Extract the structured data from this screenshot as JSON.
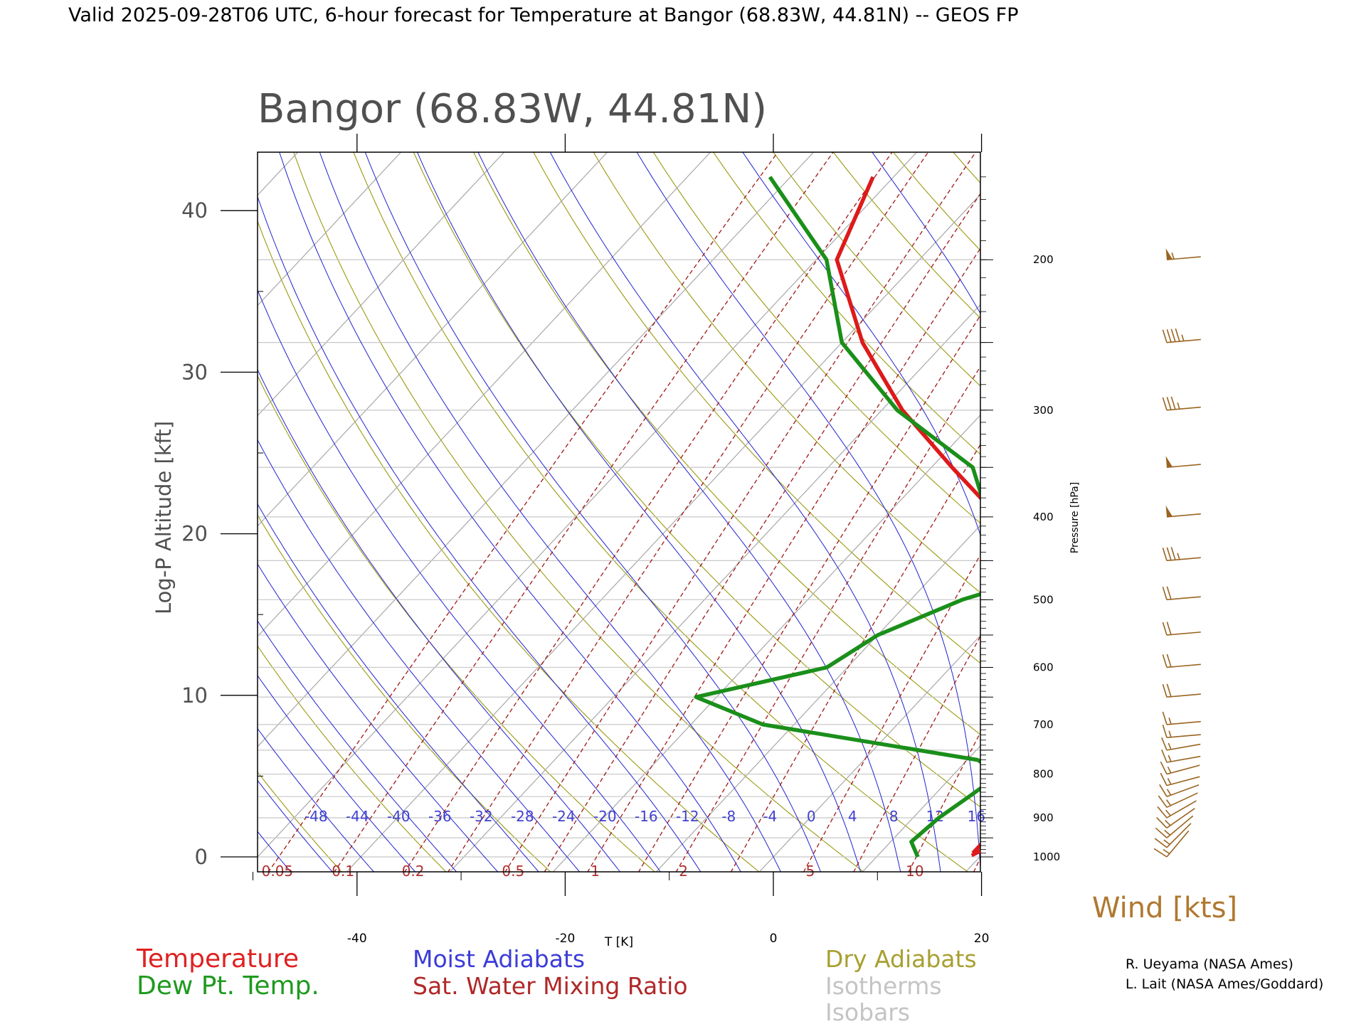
{
  "header": {
    "title": "Valid 2025-09-28T06 UTC, 6-hour forecast for Temperature at Bangor (68.83W, 44.81N) -- GEOS FP"
  },
  "plot": {
    "title": "Bangor (68.83W, 44.81N)",
    "left_axis_label": "Log-P Altitude [kft]",
    "right_axis_label": "Pressure [hPa]",
    "x_axis_label": "T [K]",
    "wind_label": "Wind [kts]"
  },
  "legend": {
    "left": [
      {
        "label": "Temperature",
        "color": "#e02020"
      },
      {
        "label": "Dew Pt. Temp.",
        "color": "#1e9a1e"
      }
    ],
    "middle": [
      {
        "label": "Moist Adiabats",
        "color": "#3c3cd8"
      },
      {
        "label": "Sat. Water Mixing Ratio",
        "color": "#b02828"
      }
    ],
    "right": [
      {
        "label": "Dry Adiabats",
        "color": "#a8a030"
      },
      {
        "label": "Isotherms",
        "color": "#c4c4c4"
      },
      {
        "label": "Isobars",
        "color": "#c4c4c4"
      }
    ]
  },
  "credits": [
    "R. Ueyama (NASA Ames)",
    "L. Lait (NASA Ames/Goddard)"
  ],
  "colors": {
    "temperature": "#dd1a1a",
    "dewpoint": "#1a8f1a",
    "moist_adiabat": "#2222d0",
    "dry_adiabat": "#9a9a10",
    "mixing_ratio": "#a01818",
    "isotherm": "#a8a8a8",
    "isobar": "#c8c8c8",
    "wind": "#9a6420"
  },
  "chart_data": {
    "type": "line",
    "x_axis": {
      "label": "T [K]",
      "range": [
        -50,
        20
      ],
      "ticks": [
        -40,
        -20,
        0,
        20
      ]
    },
    "y_axis_left": {
      "label": "Log-P Altitude [kft]",
      "range": [
        -1,
        43
      ],
      "ticks": [
        0,
        10,
        20,
        30,
        40
      ]
    },
    "y_axis_right": {
      "label": "Pressure [hPa]",
      "labeled_ticks": [
        200,
        300,
        400,
        500,
        600,
        700,
        800,
        900,
        1000
      ]
    },
    "skew_temperature_labels": [
      "-48",
      "-44",
      "-40",
      "-36",
      "-32",
      "-28",
      "-24",
      "-20",
      "-16",
      "-12",
      "-8",
      "-4",
      "0",
      "4",
      "8",
      "12",
      "16"
    ],
    "mixing_ratio_labels": [
      "0.05",
      "0.1",
      "0.2",
      "0.5",
      "1",
      "2",
      "5",
      "10"
    ],
    "series": [
      {
        "name": "Temperature",
        "color": "#dd1a1a",
        "points": [
          {
            "p": 990,
            "t": 19.0
          },
          {
            "p": 900,
            "t": 19.0
          },
          {
            "p": 850,
            "t": 17.0
          },
          {
            "p": 800,
            "t": 15.0
          },
          {
            "p": 760,
            "t": 14.5
          },
          {
            "p": 720,
            "t": 15.5
          },
          {
            "p": 650,
            "t": 18.5
          },
          {
            "p": 600,
            "t": 15.0
          },
          {
            "p": 500,
            "t": 2.0
          },
          {
            "p": 450,
            "t": -2.0
          },
          {
            "p": 400,
            "t": -9.0
          },
          {
            "p": 350,
            "t": -18.0
          },
          {
            "p": 300,
            "t": -28.0
          },
          {
            "p": 250,
            "t": -38.0
          },
          {
            "p": 200,
            "t": -48.0
          },
          {
            "p": 160,
            "t": -52.0
          }
        ]
      },
      {
        "name": "Dew Pt. Temp.",
        "color": "#1a8f1a",
        "points": [
          {
            "p": 1000,
            "t": 14.0
          },
          {
            "p": 960,
            "t": 12.0
          },
          {
            "p": 900,
            "t": 12.5
          },
          {
            "p": 850,
            "t": 13.5
          },
          {
            "p": 800,
            "t": 14.5
          },
          {
            "p": 770,
            "t": 11.0
          },
          {
            "p": 700,
            "t": -13.0
          },
          {
            "p": 650,
            "t": -22.0
          },
          {
            "p": 600,
            "t": -12.0
          },
          {
            "p": 550,
            "t": -10.0
          },
          {
            "p": 500,
            "t": -5.0
          },
          {
            "p": 450,
            "t": 4.0
          },
          {
            "p": 400,
            "t": -10.0
          },
          {
            "p": 350,
            "t": -16.0
          },
          {
            "p": 300,
            "t": -28.5
          },
          {
            "p": 250,
            "t": -40.0
          },
          {
            "p": 200,
            "t": -49.0
          },
          {
            "p": 160,
            "t": -62.0
          }
        ]
      }
    ],
    "wind_barbs": [
      {
        "p": 200,
        "speed_kts": 55,
        "dir_deg": 265
      },
      {
        "p": 250,
        "speed_kts": 45,
        "dir_deg": 265
      },
      {
        "p": 300,
        "speed_kts": 35,
        "dir_deg": 265
      },
      {
        "p": 350,
        "speed_kts": 50,
        "dir_deg": 265
      },
      {
        "p": 400,
        "speed_kts": 50,
        "dir_deg": 265
      },
      {
        "p": 450,
        "speed_kts": 35,
        "dir_deg": 265
      },
      {
        "p": 500,
        "speed_kts": 20,
        "dir_deg": 265
      },
      {
        "p": 550,
        "speed_kts": 20,
        "dir_deg": 265
      },
      {
        "p": 600,
        "speed_kts": 20,
        "dir_deg": 265
      },
      {
        "p": 650,
        "speed_kts": 20,
        "dir_deg": 265
      },
      {
        "p": 700,
        "speed_kts": 15,
        "dir_deg": 265
      },
      {
        "p": 725,
        "speed_kts": 15,
        "dir_deg": 265
      },
      {
        "p": 750,
        "speed_kts": 15,
        "dir_deg": 260
      },
      {
        "p": 775,
        "speed_kts": 15,
        "dir_deg": 260
      },
      {
        "p": 800,
        "speed_kts": 15,
        "dir_deg": 255
      },
      {
        "p": 825,
        "speed_kts": 15,
        "dir_deg": 255
      },
      {
        "p": 850,
        "speed_kts": 15,
        "dir_deg": 250
      },
      {
        "p": 875,
        "speed_kts": 15,
        "dir_deg": 245
      },
      {
        "p": 900,
        "speed_kts": 15,
        "dir_deg": 240
      },
      {
        "p": 925,
        "speed_kts": 15,
        "dir_deg": 235
      },
      {
        "p": 950,
        "speed_kts": 15,
        "dir_deg": 230
      },
      {
        "p": 975,
        "speed_kts": 15,
        "dir_deg": 225
      },
      {
        "p": 1000,
        "speed_kts": 15,
        "dir_deg": 220
      }
    ]
  }
}
